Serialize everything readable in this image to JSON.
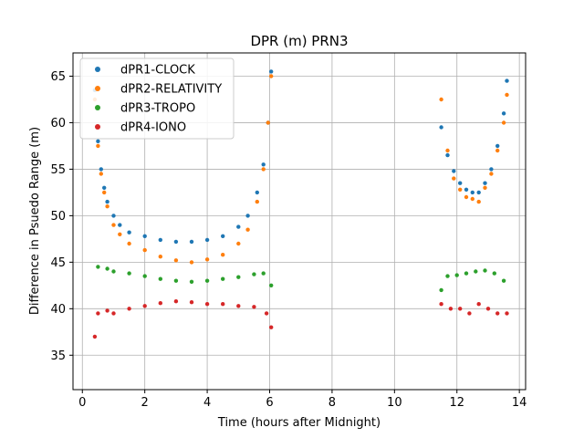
{
  "chart_data": {
    "type": "scatter",
    "title": "DPR (m) PRN3",
    "xlabel": "Time (hours after Midnight)",
    "ylabel": "Difference in Psuedo Range (m)",
    "xlim": [
      -0.3,
      14.2
    ],
    "ylim": [
      31.3,
      67.5
    ],
    "xticks": [
      "0",
      "2",
      "4",
      "6",
      "8",
      "10",
      "12",
      "14"
    ],
    "yticks": [
      "35",
      "40",
      "45",
      "50",
      "55",
      "60",
      "65"
    ],
    "grid": true,
    "legend_position": "top-left",
    "series": [
      {
        "name": "dPR1-CLOCK",
        "color": "#1f77b4",
        "points": [
          [
            0.4,
            63.5
          ],
          [
            0.5,
            58.0
          ],
          [
            0.6,
            55.0
          ],
          [
            0.7,
            53.0
          ],
          [
            0.8,
            51.5
          ],
          [
            1.0,
            50.0
          ],
          [
            1.2,
            49.0
          ],
          [
            1.5,
            48.2
          ],
          [
            2.0,
            47.8
          ],
          [
            2.5,
            47.4
          ],
          [
            3.0,
            47.2
          ],
          [
            3.5,
            47.2
          ],
          [
            4.0,
            47.4
          ],
          [
            4.5,
            47.8
          ],
          [
            5.0,
            48.8
          ],
          [
            5.3,
            50.0
          ],
          [
            5.6,
            52.5
          ],
          [
            5.8,
            55.5
          ],
          [
            5.95,
            60.0
          ],
          [
            6.05,
            65.5
          ],
          [
            11.5,
            59.5
          ],
          [
            11.7,
            56.5
          ],
          [
            11.9,
            54.8
          ],
          [
            12.1,
            53.5
          ],
          [
            12.3,
            52.8
          ],
          [
            12.5,
            52.5
          ],
          [
            12.7,
            52.5
          ],
          [
            12.9,
            53.5
          ],
          [
            13.1,
            55.0
          ],
          [
            13.3,
            57.5
          ],
          [
            13.5,
            61.0
          ],
          [
            13.6,
            64.5
          ]
        ]
      },
      {
        "name": "dPR2-RELATIVITY",
        "color": "#ff7f0e",
        "points": [
          [
            0.4,
            62.5
          ],
          [
            0.5,
            57.5
          ],
          [
            0.6,
            54.5
          ],
          [
            0.7,
            52.5
          ],
          [
            0.8,
            51.0
          ],
          [
            1.0,
            49.0
          ],
          [
            1.2,
            48.0
          ],
          [
            1.5,
            47.0
          ],
          [
            2.0,
            46.3
          ],
          [
            2.5,
            45.6
          ],
          [
            3.0,
            45.2
          ],
          [
            3.5,
            45.0
          ],
          [
            4.0,
            45.3
          ],
          [
            4.5,
            45.8
          ],
          [
            5.0,
            47.0
          ],
          [
            5.3,
            48.5
          ],
          [
            5.6,
            51.5
          ],
          [
            5.8,
            55.0
          ],
          [
            5.95,
            60.0
          ],
          [
            6.05,
            65.0
          ],
          [
            11.5,
            62.5
          ],
          [
            11.7,
            57.0
          ],
          [
            11.9,
            54.0
          ],
          [
            12.1,
            52.8
          ],
          [
            12.3,
            52.0
          ],
          [
            12.5,
            51.8
          ],
          [
            12.7,
            51.5
          ],
          [
            12.9,
            53.0
          ],
          [
            13.1,
            54.5
          ],
          [
            13.3,
            57.0
          ],
          [
            13.5,
            60.0
          ],
          [
            13.6,
            63.0
          ]
        ]
      },
      {
        "name": "dPR3-TROPO",
        "color": "#2ca02c",
        "points": [
          [
            0.5,
            44.5
          ],
          [
            0.8,
            44.3
          ],
          [
            1.0,
            44.0
          ],
          [
            1.5,
            43.8
          ],
          [
            2.0,
            43.5
          ],
          [
            2.5,
            43.2
          ],
          [
            3.0,
            43.0
          ],
          [
            3.5,
            42.9
          ],
          [
            4.0,
            43.0
          ],
          [
            4.5,
            43.2
          ],
          [
            5.0,
            43.4
          ],
          [
            5.5,
            43.7
          ],
          [
            5.8,
            43.8
          ],
          [
            6.05,
            42.5
          ],
          [
            11.5,
            42.0
          ],
          [
            11.7,
            43.5
          ],
          [
            12.0,
            43.6
          ],
          [
            12.3,
            43.8
          ],
          [
            12.6,
            44.0
          ],
          [
            12.9,
            44.1
          ],
          [
            13.2,
            43.8
          ],
          [
            13.5,
            43.0
          ]
        ]
      },
      {
        "name": "dPR4-IONO",
        "color": "#d62728",
        "points": [
          [
            0.4,
            37.0
          ],
          [
            0.5,
            39.5
          ],
          [
            0.8,
            39.8
          ],
          [
            1.0,
            39.5
          ],
          [
            1.5,
            40.0
          ],
          [
            2.0,
            40.3
          ],
          [
            2.5,
            40.6
          ],
          [
            3.0,
            40.8
          ],
          [
            3.5,
            40.7
          ],
          [
            4.0,
            40.5
          ],
          [
            4.5,
            40.5
          ],
          [
            5.0,
            40.3
          ],
          [
            5.5,
            40.2
          ],
          [
            5.9,
            39.5
          ],
          [
            6.05,
            38.0
          ],
          [
            11.5,
            40.5
          ],
          [
            11.8,
            40.0
          ],
          [
            12.1,
            40.0
          ],
          [
            12.4,
            39.5
          ],
          [
            12.7,
            40.5
          ],
          [
            13.0,
            40.0
          ],
          [
            13.3,
            39.5
          ],
          [
            13.6,
            39.5
          ]
        ]
      }
    ]
  }
}
